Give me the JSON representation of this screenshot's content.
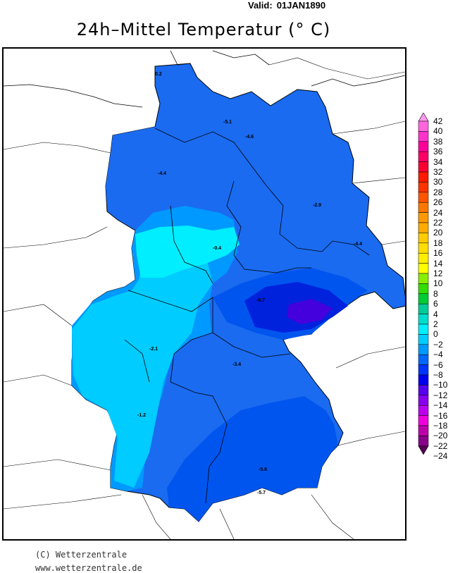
{
  "header": {
    "valid_label": "Valid:",
    "valid_date": "01JAN1890",
    "title": "24h–Mittel Temperatur (° C)"
  },
  "map": {
    "station_values": [
      "0.2",
      "-5.1",
      "-4.6",
      "-4.4",
      "-2.9",
      "-0.4",
      "-4.4",
      "-6.7",
      "-2.1",
      "-3.4",
      "-1.2",
      "-5.6",
      "-5.7"
    ]
  },
  "legend": {
    "labels": [
      "42",
      "40",
      "38",
      "36",
      "34",
      "32",
      "30",
      "28",
      "26",
      "24",
      "22",
      "20",
      "18",
      "16",
      "14",
      "12",
      "10",
      "8",
      "6",
      "4",
      "2",
      "0",
      "−2",
      "−4",
      "−6",
      "−8",
      "−10",
      "−12",
      "−14",
      "−16",
      "−18",
      "−20",
      "−22",
      "−24"
    ],
    "colors": [
      "#ff99ee",
      "#ff66dd",
      "#ff33cc",
      "#ff0099",
      "#ff0066",
      "#ff0033",
      "#ff1a00",
      "#ff3300",
      "#ff5500",
      "#ff7700",
      "#ff9900",
      "#ffaa00",
      "#ffcc00",
      "#ffdd00",
      "#ffee00",
      "#ffff00",
      "#88ee00",
      "#33dd00",
      "#00cc33",
      "#00cc99",
      "#00ddcc",
      "#00eeff",
      "#00ccff",
      "#0099ff",
      "#0066ff",
      "#0033ff",
      "#0000ee",
      "#5500ee",
      "#8800ee",
      "#bb00ee",
      "#ee00dd",
      "#bb00aa",
      "#880088",
      "#550055"
    ]
  },
  "footer": {
    "copyright": "(C) Wetterzentrale",
    "url": "www.wetterzentrale.de"
  }
}
